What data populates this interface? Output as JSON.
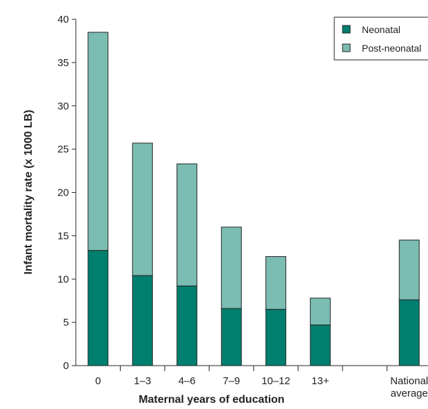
{
  "chart_data": {
    "type": "bar",
    "stacked": true,
    "title": "",
    "xlabel": "Maternal years of education",
    "ylabel": "Infant mortality rate (x 1000 LB)",
    "ylim": [
      0,
      40
    ],
    "yticks": [
      0,
      5,
      10,
      15,
      20,
      25,
      30,
      35,
      40
    ],
    "categories": [
      "0",
      "1–3",
      "4–6",
      "7–9",
      "10–12",
      "13+",
      "",
      "National average"
    ],
    "category_label_lines": [
      [
        "0"
      ],
      [
        "1–3"
      ],
      [
        "4–6"
      ],
      [
        "7–9"
      ],
      [
        "10–12"
      ],
      [
        "13+"
      ],
      [
        ""
      ],
      [
        "National",
        "average"
      ]
    ],
    "series": [
      {
        "name": "Neonatal",
        "color": "#007f6e",
        "values": [
          13.3,
          10.4,
          9.2,
          6.6,
          6.5,
          4.7,
          null,
          7.6
        ]
      },
      {
        "name": "Post-neonatal",
        "color": "#7bbcb3",
        "values": [
          25.2,
          15.3,
          14.1,
          9.4,
          6.1,
          3.1,
          null,
          6.9
        ]
      }
    ],
    "legend_position": "top-right",
    "grid": false
  }
}
